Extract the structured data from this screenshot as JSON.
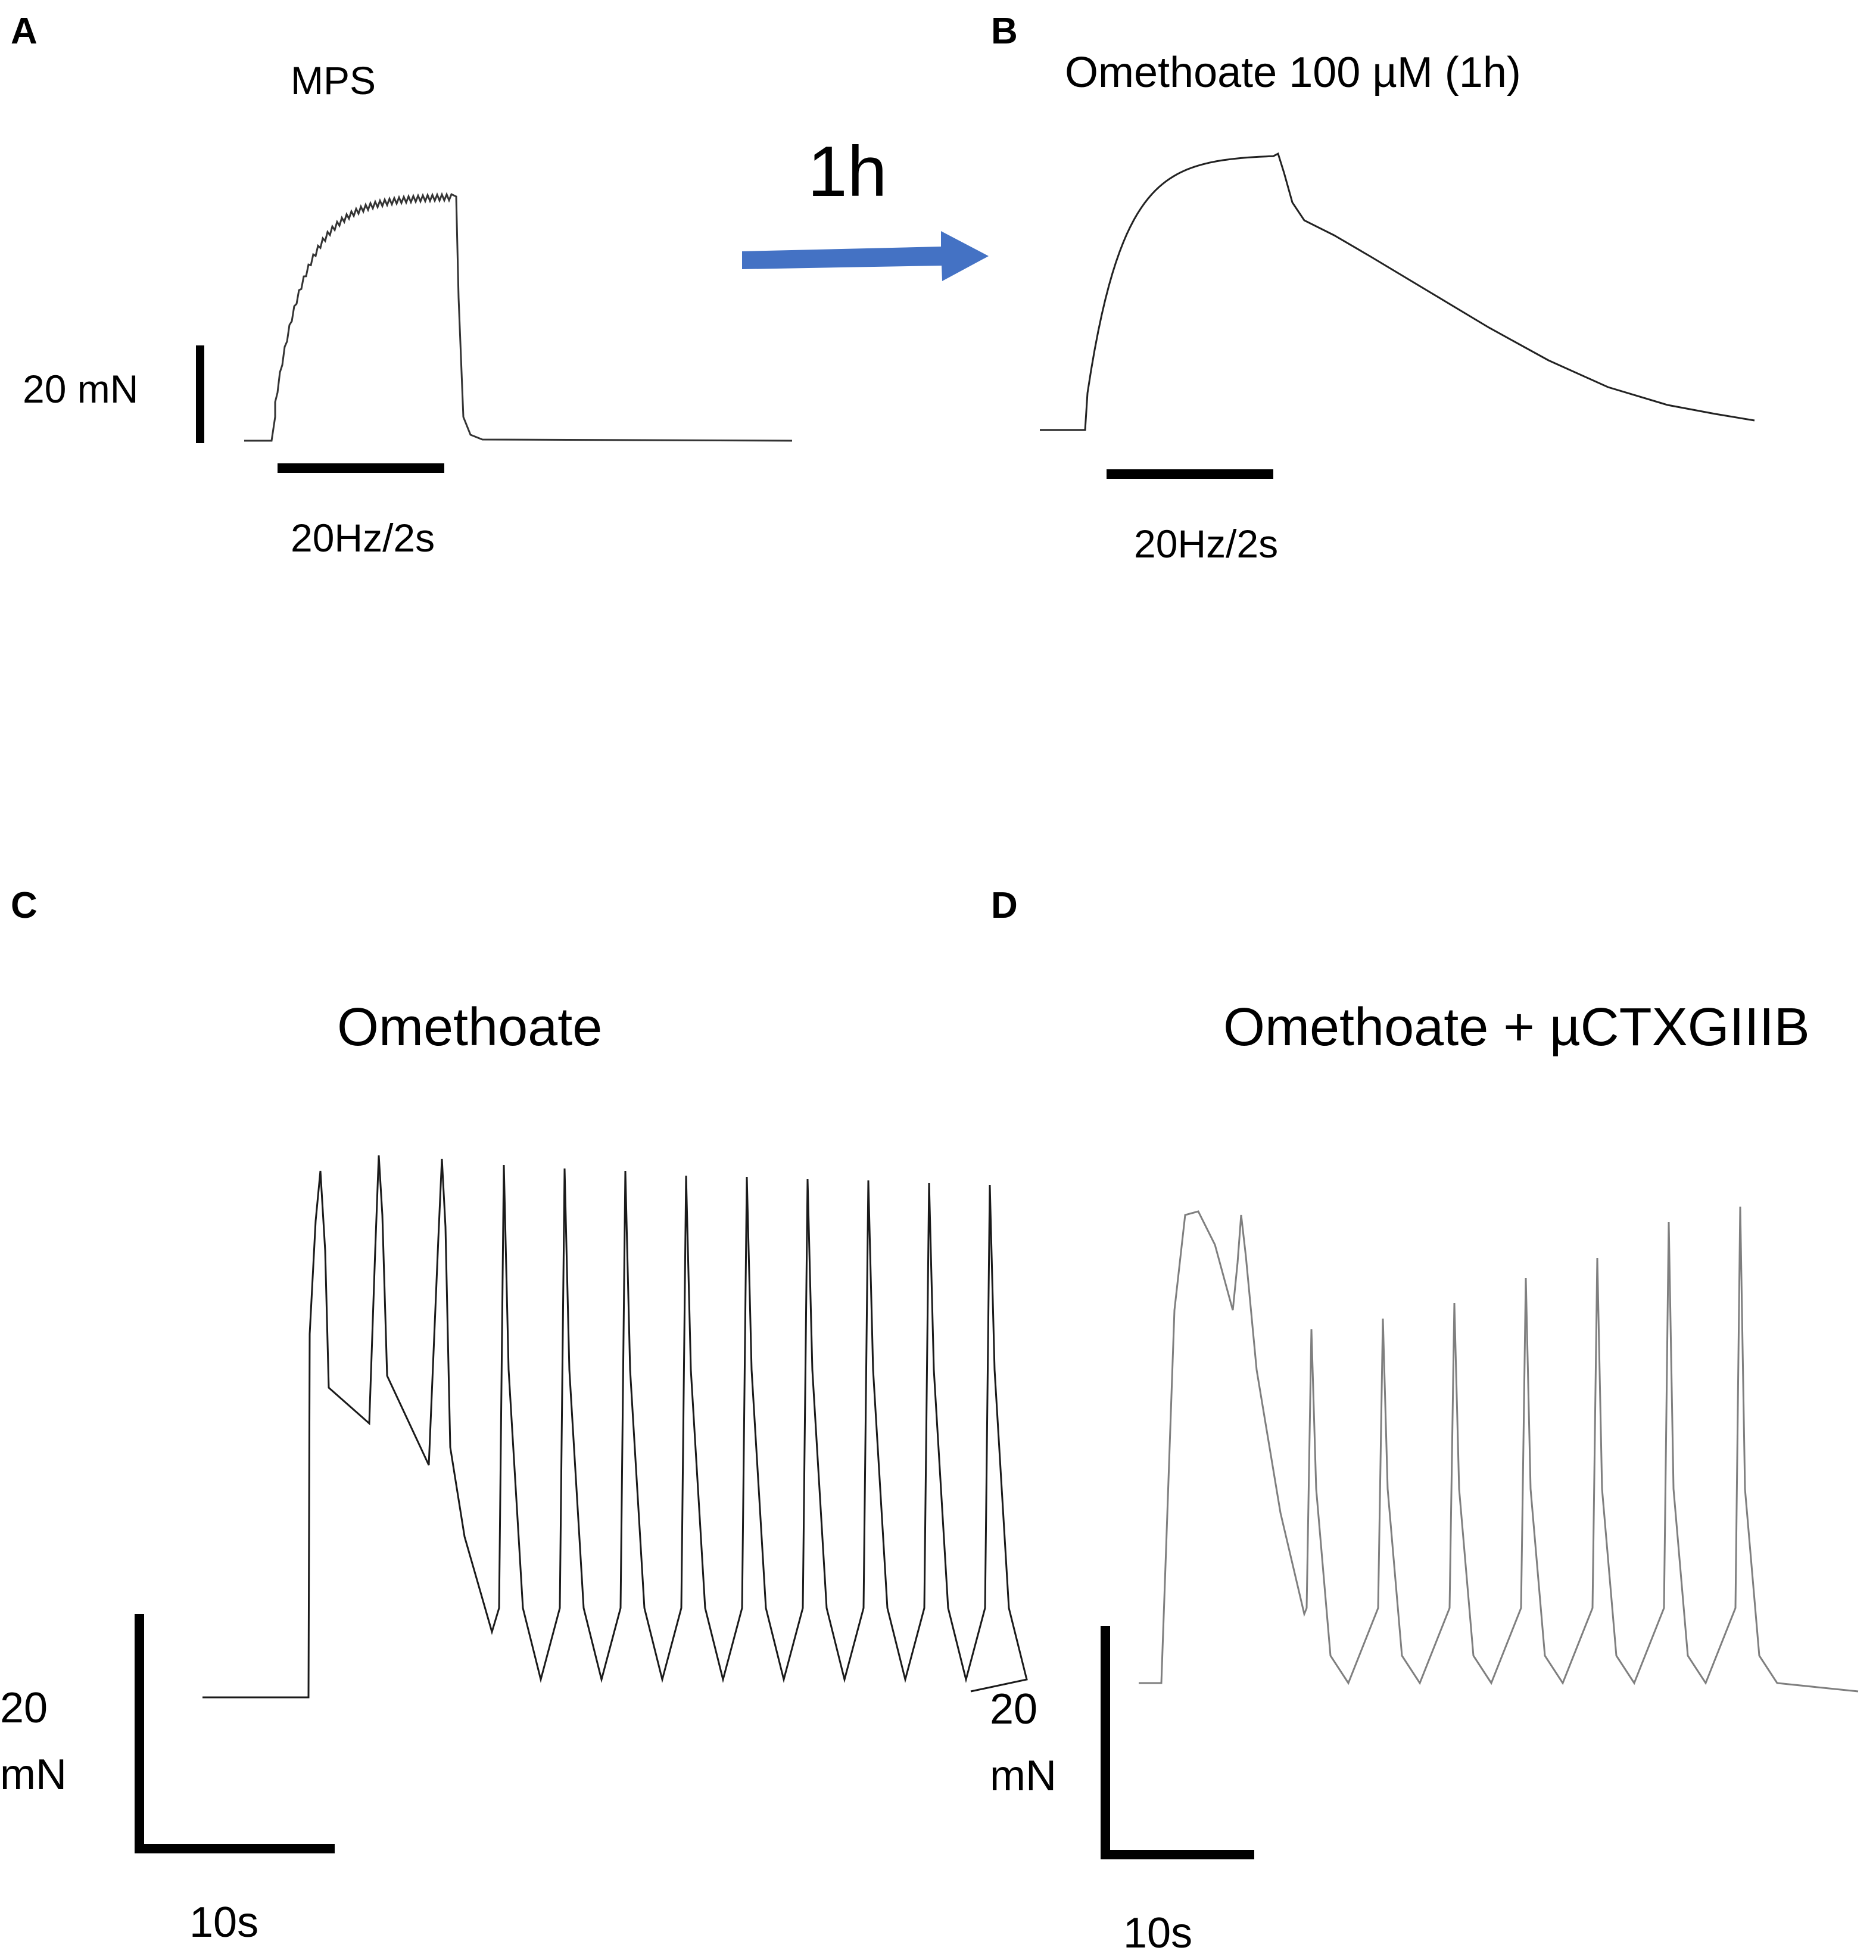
{
  "panels": {
    "A": {
      "letter": "A",
      "title": "MPS",
      "stim": "20Hz/2s",
      "scale_y": "20 mN"
    },
    "arrow": {
      "label": "1h",
      "color": "#4472c4"
    },
    "B": {
      "letter": "B",
      "title": "Omethoate 100 µM (1h)",
      "stim": "20Hz/2s"
    },
    "C": {
      "letter": "C",
      "title": "Omethoate",
      "scale_y_num": "20",
      "scale_y_unit": "mN",
      "scale_x": "10s"
    },
    "D": {
      "letter": "D",
      "title": "Omethoate + µCTXGIIIB",
      "scale_y_num": "20",
      "scale_y_unit": "mN",
      "scale_x": "10s"
    }
  },
  "colors": {
    "trace_dark": "#1a1a1a",
    "trace_gray": "#7f7f7f",
    "arrow": "#4472c4"
  }
}
